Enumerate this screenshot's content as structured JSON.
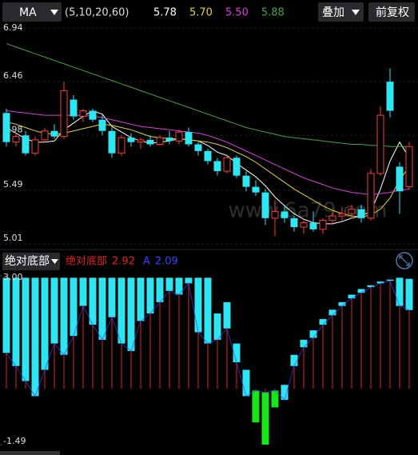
{
  "toolbar": {
    "indicator": "MA",
    "params": "(5,10,20,60)",
    "overlay": "叠加",
    "adjust": "前复权"
  },
  "watermark": "www.6a79.com",
  "chart_data": [
    {
      "type": "candlestick",
      "ylim": [
        5.01,
        6.94
      ],
      "yticks": [
        6.94,
        6.46,
        5.98,
        5.49,
        5.01
      ],
      "up_color": "#ff3b3b",
      "down_color": "#2ee6f2",
      "open": [
        6.18,
        5.92,
        5.98,
        5.82,
        5.94,
        6.02,
        5.97,
        6.3,
        6.15,
        6.2,
        6.12,
        6.02,
        5.82,
        5.96,
        5.92,
        5.94,
        5.9,
        5.96,
        5.93,
        6.01,
        5.9,
        5.84,
        5.75,
        5.66,
        5.78,
        5.62,
        5.52,
        5.47,
        5.24,
        5.3,
        5.24,
        5.16,
        5.2,
        5.14,
        5.22,
        5.26,
        5.28,
        5.32,
        5.24,
        5.64,
        6.46,
        5.7,
        5.52
      ],
      "high": [
        6.22,
        6.0,
        6.02,
        5.97,
        6.05,
        6.08,
        6.46,
        6.34,
        6.22,
        6.22,
        6.16,
        6.05,
        5.98,
        6.0,
        5.96,
        5.98,
        5.98,
        6.02,
        6.03,
        6.05,
        5.92,
        5.86,
        5.78,
        5.8,
        5.8,
        5.66,
        5.58,
        5.5,
        5.4,
        5.36,
        5.26,
        5.22,
        5.3,
        5.24,
        5.3,
        5.34,
        5.36,
        5.36,
        5.68,
        6.24,
        6.58,
        5.74,
        5.92
      ],
      "low": [
        5.88,
        5.88,
        5.8,
        5.8,
        5.92,
        5.95,
        5.95,
        6.12,
        6.1,
        6.1,
        5.98,
        5.78,
        5.8,
        5.88,
        5.86,
        5.88,
        5.89,
        5.9,
        5.9,
        5.88,
        5.8,
        5.72,
        5.62,
        5.64,
        5.6,
        5.48,
        5.44,
        5.18,
        5.08,
        5.2,
        5.12,
        5.1,
        5.12,
        5.1,
        5.18,
        5.22,
        5.24,
        5.2,
        5.22,
        5.62,
        6.14,
        5.28,
        5.5
      ],
      "close": [
        5.92,
        5.97,
        5.82,
        5.94,
        6.02,
        5.97,
        6.38,
        6.15,
        6.2,
        6.12,
        6.02,
        5.82,
        5.96,
        5.92,
        5.94,
        5.9,
        5.96,
        5.93,
        6.01,
        5.9,
        5.84,
        5.75,
        5.66,
        5.78,
        5.62,
        5.52,
        5.47,
        5.24,
        5.3,
        5.24,
        5.16,
        5.2,
        5.14,
        5.22,
        5.26,
        5.28,
        5.32,
        5.24,
        5.64,
        6.16,
        6.2,
        5.48,
        5.88
      ],
      "overlays": [
        {
          "color": "#ffffff",
          "label": "5.78",
          "values": [
            6.05,
            6.0,
            5.95,
            5.92,
            5.92,
            5.93,
            6.03,
            6.09,
            6.15,
            6.2,
            6.17,
            6.06,
            6.01,
            5.96,
            5.93,
            5.91,
            5.92,
            5.93,
            5.95,
            5.94,
            5.93,
            5.89,
            5.83,
            5.8,
            5.73,
            5.67,
            5.61,
            5.53,
            5.43,
            5.35,
            5.28,
            5.23,
            5.2,
            5.19,
            5.19,
            5.21,
            5.24,
            5.26,
            5.3,
            5.5,
            5.75,
            5.92,
            5.78
          ]
        },
        {
          "color": "#e6d62a",
          "label": "5.70",
          "values": [
            6.1,
            6.08,
            6.05,
            6.02,
            6.0,
            5.99,
            6.0,
            6.02,
            6.04,
            6.06,
            6.08,
            6.07,
            6.05,
            6.03,
            6.0,
            5.97,
            5.96,
            5.95,
            5.95,
            5.94,
            5.93,
            5.92,
            5.9,
            5.87,
            5.83,
            5.79,
            5.74,
            5.68,
            5.62,
            5.56,
            5.5,
            5.45,
            5.4,
            5.35,
            5.31,
            5.28,
            5.26,
            5.25,
            5.27,
            5.32,
            5.42,
            5.58,
            5.7
          ]
        },
        {
          "color": "#e03ae0",
          "label": "5.50",
          "values": [
            6.2,
            6.19,
            6.18,
            6.17,
            6.16,
            6.16,
            6.16,
            6.16,
            6.16,
            6.15,
            6.14,
            6.12,
            6.1,
            6.08,
            6.06,
            6.05,
            6.04,
            6.03,
            6.02,
            6.01,
            6.0,
            5.98,
            5.95,
            5.92,
            5.88,
            5.84,
            5.8,
            5.76,
            5.72,
            5.68,
            5.64,
            5.6,
            5.57,
            5.54,
            5.51,
            5.49,
            5.47,
            5.46,
            5.45,
            5.46,
            5.47,
            5.49,
            5.5
          ]
        },
        {
          "color": "#3fa83f",
          "label": "5.88",
          "values": [
            6.8,
            6.77,
            6.74,
            6.71,
            6.68,
            6.65,
            6.62,
            6.59,
            6.56,
            6.53,
            6.5,
            6.47,
            6.44,
            6.41,
            6.38,
            6.35,
            6.32,
            6.29,
            6.26,
            6.23,
            6.2,
            6.17,
            6.14,
            6.11,
            6.08,
            6.05,
            6.03,
            6.01,
            5.99,
            5.97,
            5.96,
            5.95,
            5.94,
            5.93,
            5.92,
            5.91,
            5.9,
            5.9,
            5.89,
            5.89,
            5.88,
            5.88,
            5.88
          ]
        }
      ]
    },
    {
      "type": "floating-bar",
      "title": "绝对底部",
      "ylim": [
        -1.49,
        3
      ],
      "yticks": [
        {
          "value": 3,
          "label": "3.00"
        },
        -1.49
      ],
      "rise_color": "#2ee6f2",
      "fall_color": "#19e619",
      "series": [
        {
          "name": "绝对底部",
          "color": "#e02020",
          "values": [
            2.95,
            2.95,
            2.95,
            2.95,
            2.95,
            2.95,
            2.95,
            2.95,
            2.95,
            2.95,
            2.95,
            2.95,
            2.95,
            2.95,
            2.95,
            2.95,
            2.95,
            2.95,
            2.95,
            2.95,
            2.95,
            2.95,
            2.0,
            2.3,
            1.2,
            0.5,
            -0.9,
            -1.49,
            -0.5,
            0.1,
            0.9,
            1.3,
            1.55,
            1.85,
            2.1,
            2.3,
            2.5,
            2.65,
            2.75,
            2.85,
            2.9,
            2.95,
            2.92
          ]
        },
        {
          "name": "A",
          "color": "#3344ff",
          "values": [
            0.95,
            0.6,
            0.2,
            -0.2,
            0.5,
            1.2,
            0.9,
            1.4,
            2.2,
            1.7,
            1.3,
            1.9,
            1.2,
            1.0,
            1.8,
            2.0,
            2.3,
            2.6,
            2.5,
            2.8,
            1.5,
            1.2,
            1.3,
            1.6,
            0.7,
            -0.2,
            -0.05,
            -0.1,
            -0.05,
            -0.3,
            0.6,
            1.1,
            1.35,
            1.7,
            1.95,
            2.2,
            2.4,
            2.55,
            2.7,
            2.8,
            2.87,
            2.2,
            2.09
          ]
        }
      ]
    }
  ]
}
